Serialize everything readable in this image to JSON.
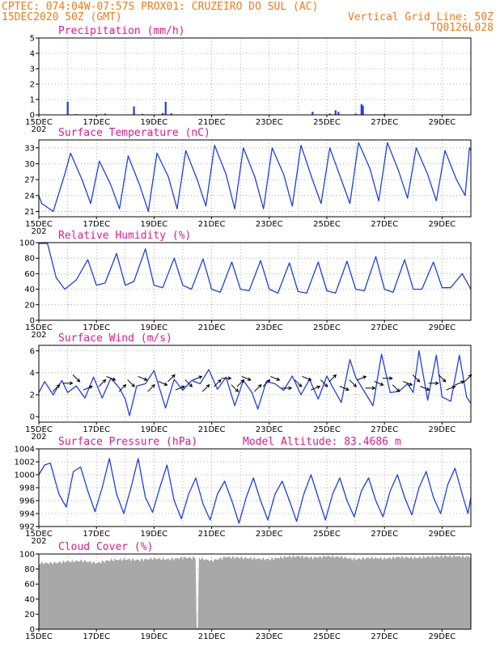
{
  "header": {
    "line1_left": "CPTEC:   074:04W-07:57S   PROX01: CRUZEIRO DO SUL (AC)",
    "line2_left": "15DEC2020 50Z (GMT)",
    "line2_right": "Vertical Grid Line: 50Z",
    "line3_right": "TQ0126L028"
  },
  "x_axis": {
    "labels": [
      "15DEC",
      "17DEC",
      "19DEC",
      "21DEC",
      "23DEC",
      "25DEC",
      "27DEC",
      "29DEC"
    ],
    "year_stub": "202"
  },
  "colors": {
    "header": "#f07a1c",
    "panel_title": "#e0198c",
    "series": "#1f3fe0",
    "cloud": "#a8a8a8",
    "arrow": "#000000"
  },
  "chart_data": [
    {
      "type": "bar",
      "title": "Precipitation (mm/h)",
      "ylim": [
        0,
        5
      ],
      "yticks": [
        "0",
        "1",
        "2",
        "3",
        "4",
        "5"
      ],
      "x_start_day": 15,
      "x_end_day": 30,
      "values_day_mm": [
        [
          16.0,
          0.85
        ],
        [
          16.3,
          0.05
        ],
        [
          17.3,
          0.08
        ],
        [
          18.3,
          0.55
        ],
        [
          18.6,
          0.06
        ],
        [
          19.3,
          0.12
        ],
        [
          19.4,
          0.85
        ],
        [
          19.6,
          0.1
        ],
        [
          21.5,
          0.04
        ],
        [
          24.5,
          0.2
        ],
        [
          25.1,
          0.08
        ],
        [
          25.3,
          0.3
        ],
        [
          25.4,
          0.2
        ],
        [
          26.0,
          0.08
        ],
        [
          26.2,
          0.7
        ],
        [
          26.25,
          0.6
        ],
        [
          27.0,
          0.06
        ]
      ]
    },
    {
      "type": "line",
      "title": "Surface Temperature (nC)",
      "ylim": [
        20,
        34.5
      ],
      "yticks": [
        "21",
        "24",
        "27",
        "30",
        "33"
      ],
      "x_start_day": 15,
      "x_end_day": 30,
      "points_day_value": [
        [
          15.0,
          24.0
        ],
        [
          15.1,
          22.5
        ],
        [
          15.5,
          21.0
        ],
        [
          15.9,
          28.0
        ],
        [
          16.1,
          32.0
        ],
        [
          16.5,
          27.0
        ],
        [
          16.8,
          22.5
        ],
        [
          17.1,
          30.5
        ],
        [
          17.5,
          26.0
        ],
        [
          17.8,
          21.5
        ],
        [
          18.1,
          31.5
        ],
        [
          18.5,
          26.0
        ],
        [
          18.8,
          21.0
        ],
        [
          19.1,
          32.0
        ],
        [
          19.5,
          27.5
        ],
        [
          19.8,
          21.5
        ],
        [
          20.1,
          32.5
        ],
        [
          20.5,
          27.0
        ],
        [
          20.8,
          22.0
        ],
        [
          21.1,
          33.5
        ],
        [
          21.5,
          28.0
        ],
        [
          21.8,
          21.5
        ],
        [
          22.1,
          33.0
        ],
        [
          22.5,
          27.5
        ],
        [
          22.8,
          21.5
        ],
        [
          23.1,
          33.0
        ],
        [
          23.5,
          28.0
        ],
        [
          23.8,
          22.0
        ],
        [
          24.1,
          33.5
        ],
        [
          24.5,
          27.0
        ],
        [
          24.8,
          22.5
        ],
        [
          25.1,
          33.0
        ],
        [
          25.5,
          27.0
        ],
        [
          25.8,
          22.5
        ],
        [
          26.1,
          34.0
        ],
        [
          26.5,
          29.0
        ],
        [
          26.8,
          23.0
        ],
        [
          27.1,
          34.0
        ],
        [
          27.5,
          28.5
        ],
        [
          27.8,
          23.5
        ],
        [
          28.1,
          33.0
        ],
        [
          28.5,
          28.0
        ],
        [
          28.8,
          23.0
        ],
        [
          29.1,
          32.5
        ],
        [
          29.5,
          27.0
        ],
        [
          29.8,
          24.0
        ],
        [
          29.95,
          33.0
        ],
        [
          30.0,
          32.5
        ]
      ]
    },
    {
      "type": "line",
      "title": "Relative Humidity (%)",
      "ylim": [
        0,
        100
      ],
      "yticks": [
        "0",
        "20",
        "40",
        "60",
        "80",
        "100"
      ],
      "x_start_day": 15,
      "x_end_day": 30,
      "points_day_value": [
        [
          15.0,
          99.0
        ],
        [
          15.3,
          99.0
        ],
        [
          15.6,
          55.0
        ],
        [
          15.9,
          40.0
        ],
        [
          16.3,
          52.0
        ],
        [
          16.7,
          78.0
        ],
        [
          17.0,
          45.0
        ],
        [
          17.3,
          48.0
        ],
        [
          17.7,
          86.0
        ],
        [
          18.0,
          45.0
        ],
        [
          18.3,
          50.0
        ],
        [
          18.7,
          92.0
        ],
        [
          19.0,
          45.0
        ],
        [
          19.3,
          42.0
        ],
        [
          19.7,
          80.0
        ],
        [
          20.0,
          45.0
        ],
        [
          20.3,
          40.0
        ],
        [
          20.7,
          79.0
        ],
        [
          21.0,
          40.0
        ],
        [
          21.3,
          36.0
        ],
        [
          21.7,
          75.0
        ],
        [
          22.0,
          40.0
        ],
        [
          22.3,
          38.0
        ],
        [
          22.7,
          77.0
        ],
        [
          23.0,
          40.0
        ],
        [
          23.3,
          35.0
        ],
        [
          23.7,
          74.0
        ],
        [
          24.0,
          37.0
        ],
        [
          24.3,
          35.0
        ],
        [
          24.7,
          75.0
        ],
        [
          25.0,
          38.0
        ],
        [
          25.3,
          35.0
        ],
        [
          25.7,
          76.0
        ],
        [
          26.0,
          40.0
        ],
        [
          26.3,
          38.0
        ],
        [
          26.7,
          82.0
        ],
        [
          27.0,
          40.0
        ],
        [
          27.3,
          36.0
        ],
        [
          27.7,
          78.0
        ],
        [
          28.0,
          40.0
        ],
        [
          28.3,
          40.0
        ],
        [
          28.7,
          75.0
        ],
        [
          29.0,
          42.0
        ],
        [
          29.3,
          42.0
        ],
        [
          29.7,
          60.0
        ],
        [
          30.0,
          40.0
        ]
      ]
    },
    {
      "type": "line",
      "title": "Surface Wind (m/s)",
      "ylim": [
        -0.5,
        6.5
      ],
      "yticks": [
        "0",
        "2",
        "4",
        "6"
      ],
      "x_start_day": 15,
      "x_end_day": 30,
      "points_day_value": [
        [
          15.0,
          2.2
        ],
        [
          15.2,
          3.2
        ],
        [
          15.5,
          2.0
        ],
        [
          15.8,
          3.3
        ],
        [
          16.0,
          2.2
        ],
        [
          16.3,
          2.8
        ],
        [
          16.6,
          1.7
        ],
        [
          16.9,
          3.6
        ],
        [
          17.2,
          1.7
        ],
        [
          17.5,
          3.5
        ],
        [
          17.8,
          2.6
        ],
        [
          18.0,
          1.6
        ],
        [
          18.15,
          0.1
        ],
        [
          18.4,
          2.8
        ],
        [
          18.7,
          3.0
        ],
        [
          19.0,
          4.2
        ],
        [
          19.2,
          2.5
        ],
        [
          19.4,
          0.8
        ],
        [
          19.7,
          3.4
        ],
        [
          20.0,
          2.4
        ],
        [
          20.3,
          3.3
        ],
        [
          20.6,
          3.0
        ],
        [
          20.9,
          4.3
        ],
        [
          21.2,
          2.5
        ],
        [
          21.5,
          3.6
        ],
        [
          21.8,
          1.0
        ],
        [
          22.1,
          3.3
        ],
        [
          22.4,
          2.2
        ],
        [
          22.6,
          0.7
        ],
        [
          22.9,
          3.2
        ],
        [
          23.2,
          3.0
        ],
        [
          23.5,
          2.4
        ],
        [
          23.8,
          3.7
        ],
        [
          24.1,
          2.0
        ],
        [
          24.4,
          3.4
        ],
        [
          24.7,
          1.6
        ],
        [
          25.0,
          3.7
        ],
        [
          25.2,
          2.7
        ],
        [
          25.5,
          1.3
        ],
        [
          25.8,
          5.2
        ],
        [
          26.0,
          3.6
        ],
        [
          26.3,
          2.3
        ],
        [
          26.6,
          1.0
        ],
        [
          26.9,
          5.7
        ],
        [
          27.2,
          2.2
        ],
        [
          27.5,
          2.3
        ],
        [
          27.8,
          3.0
        ],
        [
          28.0,
          2.2
        ],
        [
          28.2,
          6.0
        ],
        [
          28.5,
          1.5
        ],
        [
          28.8,
          5.6
        ],
        [
          29.0,
          1.8
        ],
        [
          29.3,
          1.4
        ],
        [
          29.6,
          5.6
        ],
        [
          29.85,
          1.8
        ],
        [
          30.0,
          1.2
        ]
      ],
      "arrows_day_dir": [
        [
          15.6,
          1
        ],
        [
          16.0,
          0
        ],
        [
          16.3,
          -1
        ],
        [
          16.7,
          0.5
        ],
        [
          17.2,
          1
        ],
        [
          17.5,
          -0.5
        ],
        [
          17.9,
          1
        ],
        [
          18.2,
          -1
        ],
        [
          18.6,
          -0.5
        ],
        [
          18.9,
          1
        ],
        [
          19.3,
          -0.5
        ],
        [
          19.6,
          1
        ],
        [
          19.9,
          0.5
        ],
        [
          20.2,
          -1
        ],
        [
          20.5,
          0.5
        ],
        [
          20.8,
          1
        ],
        [
          21.2,
          1
        ],
        [
          21.5,
          0
        ],
        [
          21.8,
          -1
        ],
        [
          22.0,
          1
        ],
        [
          22.2,
          -0.5
        ],
        [
          22.6,
          1
        ],
        [
          22.9,
          1
        ],
        [
          23.2,
          -0.5
        ],
        [
          23.6,
          0
        ],
        [
          24.0,
          -1
        ],
        [
          24.3,
          -0.5
        ],
        [
          24.6,
          0.5
        ],
        [
          24.9,
          -1
        ],
        [
          25.2,
          1
        ],
        [
          25.6,
          -0.5
        ],
        [
          25.9,
          -1
        ],
        [
          26.2,
          0.5
        ],
        [
          26.5,
          0
        ],
        [
          26.8,
          -0.5
        ],
        [
          27.1,
          0
        ],
        [
          27.4,
          -1
        ],
        [
          27.8,
          -0.5
        ],
        [
          28.1,
          -1
        ],
        [
          28.4,
          -0.5
        ],
        [
          28.7,
          0
        ],
        [
          29.0,
          -1
        ],
        [
          29.3,
          0.5
        ],
        [
          29.6,
          0.5
        ],
        [
          29.9,
          1
        ]
      ]
    },
    {
      "type": "line",
      "title": "Surface Pressure (hPa)",
      "annotation": "Model Altitude: 83.4686 m",
      "ylim": [
        992,
        1004
      ],
      "yticks": [
        "992",
        "994",
        "996",
        "998",
        "1000",
        "1002",
        "1004"
      ],
      "x_start_day": 15,
      "x_end_day": 30,
      "points_day_value": [
        [
          15.0,
          1000.0
        ],
        [
          15.2,
          1001.5
        ],
        [
          15.4,
          1001.8
        ],
        [
          15.7,
          997.0
        ],
        [
          15.95,
          995.0
        ],
        [
          16.2,
          1000.5
        ],
        [
          16.45,
          1001.2
        ],
        [
          16.7,
          997.5
        ],
        [
          16.95,
          994.3
        ],
        [
          17.2,
          998.0
        ],
        [
          17.45,
          1002.5
        ],
        [
          17.7,
          997.0
        ],
        [
          17.95,
          994.0
        ],
        [
          18.2,
          998.0
        ],
        [
          18.45,
          1002.5
        ],
        [
          18.7,
          996.5
        ],
        [
          18.95,
          994.2
        ],
        [
          19.2,
          998.0
        ],
        [
          19.45,
          1001.5
        ],
        [
          19.7,
          996.0
        ],
        [
          19.95,
          993.2
        ],
        [
          20.2,
          997.0
        ],
        [
          20.45,
          999.5
        ],
        [
          20.7,
          995.5
        ],
        [
          20.95,
          993.0
        ],
        [
          21.2,
          997.0
        ],
        [
          21.45,
          999.0
        ],
        [
          21.7,
          996.0
        ],
        [
          21.95,
          992.5
        ],
        [
          22.2,
          996.5
        ],
        [
          22.45,
          999.5
        ],
        [
          22.7,
          996.0
        ],
        [
          22.95,
          993.0
        ],
        [
          23.2,
          997.0
        ],
        [
          23.45,
          999.0
        ],
        [
          23.7,
          996.0
        ],
        [
          23.95,
          992.8
        ],
        [
          24.2,
          997.0
        ],
        [
          24.45,
          1000.0
        ],
        [
          24.7,
          996.5
        ],
        [
          24.95,
          993.0
        ],
        [
          25.2,
          997.0
        ],
        [
          25.45,
          999.5
        ],
        [
          25.7,
          996.0
        ],
        [
          25.95,
          993.5
        ],
        [
          26.2,
          997.5
        ],
        [
          26.45,
          999.5
        ],
        [
          26.7,
          996.0
        ],
        [
          26.95,
          993.5
        ],
        [
          27.2,
          997.5
        ],
        [
          27.45,
          1000.0
        ],
        [
          27.7,
          996.5
        ],
        [
          27.95,
          993.8
        ],
        [
          28.2,
          998.0
        ],
        [
          28.45,
          1000.5
        ],
        [
          28.7,
          996.5
        ],
        [
          28.95,
          994.0
        ],
        [
          29.2,
          998.5
        ],
        [
          29.45,
          1001.0
        ],
        [
          29.7,
          997.0
        ],
        [
          29.9,
          994.0
        ],
        [
          30.0,
          996.5
        ]
      ]
    },
    {
      "type": "area",
      "title": "Cloud Cover (%)",
      "ylim": [
        0,
        100
      ],
      "yticks": [
        "0",
        "20",
        "40",
        "60",
        "80",
        "100"
      ],
      "x_start_day": 15,
      "x_end_day": 30,
      "points_day_value": [
        [
          15.0,
          88.0
        ],
        [
          15.5,
          88.0
        ],
        [
          16.0,
          90.0
        ],
        [
          16.5,
          91.0
        ],
        [
          17.0,
          88.0
        ],
        [
          17.5,
          92.0
        ],
        [
          18.0,
          93.0
        ],
        [
          18.5,
          92.0
        ],
        [
          19.0,
          94.0
        ],
        [
          19.5,
          93.0
        ],
        [
          20.0,
          95.0
        ],
        [
          20.5,
          95.0
        ],
        [
          21.0,
          91.0
        ],
        [
          21.5,
          96.0
        ],
        [
          22.0,
          95.0
        ],
        [
          22.5,
          94.0
        ],
        [
          23.0,
          93.0
        ],
        [
          23.5,
          96.0
        ],
        [
          24.0,
          97.0
        ],
        [
          24.5,
          95.0
        ],
        [
          25.0,
          97.0
        ],
        [
          25.5,
          96.0
        ],
        [
          26.0,
          93.0
        ],
        [
          26.5,
          95.0
        ],
        [
          27.0,
          94.0
        ],
        [
          27.5,
          96.0
        ],
        [
          28.0,
          95.0
        ],
        [
          28.5,
          96.0
        ],
        [
          29.0,
          97.0
        ],
        [
          29.5,
          97.0
        ],
        [
          30.0,
          96.0
        ]
      ],
      "dip_day": 20.5,
      "dip_value": 2.0
    }
  ]
}
